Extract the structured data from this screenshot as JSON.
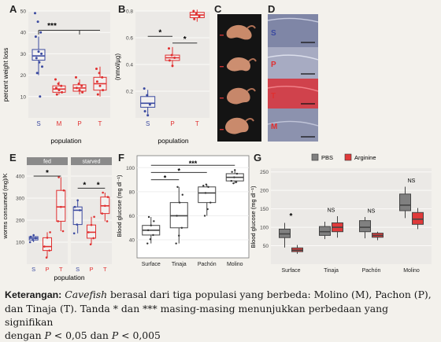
{
  "panels": {
    "A": {
      "label": "A",
      "ylabel": "percent weight loss",
      "xlabel": "population",
      "sig": "***"
    },
    "B": {
      "label": "B",
      "ylabel": "(nmol/µg)",
      "xlabel": "population",
      "sig1": "*",
      "sig2": "*"
    },
    "C": {
      "label": "C"
    },
    "D": {
      "label": "D",
      "rows": [
        "S",
        "P",
        "T",
        "M"
      ]
    },
    "E": {
      "label": "E",
      "ylabel": "worms consumed (mg)/K",
      "xlabel": "population",
      "facet_fed": "fed",
      "facet_starved": "starved",
      "sig_fed": "*",
      "sig_s1": "*",
      "sig_s2": "*"
    },
    "F": {
      "label": "F",
      "ylabel": "Blood glucose (mg dl⁻¹)",
      "sig1": "*",
      "sig2": "*",
      "sig3": "***"
    },
    "G": {
      "label": "G",
      "ylabel": "Blood glucose (mg dl⁻¹)",
      "sig_surface": "*",
      "sig_tinaja": "NS",
      "sig_pachon": "NS",
      "sig_molino": "NS"
    }
  },
  "chart_data": [
    {
      "type": "box",
      "panel": "A",
      "categories": [
        "S",
        "M",
        "P",
        "T"
      ],
      "ylim": [
        0,
        50
      ],
      "yticks": [
        10,
        20,
        30,
        40,
        50
      ],
      "ylabel": "percent weight loss",
      "xlabel": "population",
      "colors": [
        "#3b4aa0",
        "#e03030",
        "#e03030",
        "#e03030"
      ],
      "boxes": [
        {
          "min": 20,
          "q1": 27,
          "median": 29,
          "q3": 32,
          "max": 38
        },
        {
          "min": 11,
          "q1": 12,
          "median": 13.5,
          "q3": 15,
          "max": 17
        },
        {
          "min": 11,
          "q1": 12.5,
          "median": 14,
          "q3": 15.5,
          "max": 18
        },
        {
          "min": 10,
          "q1": 13,
          "median": 16,
          "q3": 19,
          "max": 24
        }
      ],
      "points": [
        [
          49,
          45,
          40,
          38,
          31,
          30,
          28,
          26,
          24,
          21,
          10
        ],
        [
          18,
          16,
          15,
          14,
          13,
          12,
          11
        ],
        [
          19,
          16,
          15,
          14,
          13,
          12
        ],
        [
          23,
          21,
          19,
          17,
          15,
          13,
          11
        ]
      ]
    },
    {
      "type": "box",
      "panel": "B",
      "categories": [
        "S",
        "P",
        "T"
      ],
      "ylim": [
        0,
        0.8
      ],
      "yticks": [
        0.2,
        0.4,
        0.6,
        0.8
      ],
      "ylabel": "(nmol/µg)",
      "xlabel": "population",
      "colors": [
        "#3b4aa0",
        "#e03030",
        "#e03030"
      ],
      "boxes": [
        {
          "min": 0.03,
          "q1": 0.08,
          "median": 0.11,
          "q3": 0.16,
          "max": 0.21
        },
        {
          "min": 0.38,
          "q1": 0.43,
          "median": 0.45,
          "q3": 0.47,
          "max": 0.53
        },
        {
          "min": 0.72,
          "q1": 0.75,
          "median": 0.77,
          "q3": 0.79,
          "max": 0.81
        }
      ],
      "points": [
        [
          0.22,
          0.17,
          0.1,
          0.05,
          0.02
        ],
        [
          0.52,
          0.47,
          0.45,
          0.43,
          0.39
        ],
        [
          0.8,
          0.78,
          0.76,
          0.74
        ]
      ]
    },
    {
      "type": "box",
      "panel": "E",
      "facets": [
        "fed",
        "starved"
      ],
      "categories": [
        "S",
        "P",
        "T"
      ],
      "ylim": [
        0,
        450
      ],
      "yticks": [
        100,
        200,
        300,
        400
      ],
      "ylabel": "worms consumed (mg)/K",
      "xlabel": "population",
      "colors": [
        "#3b4aa0",
        "#e03030",
        "#e03030"
      ],
      "boxes_fed": [
        {
          "min": 100,
          "q1": 110,
          "median": 118,
          "q3": 125,
          "max": 132
        },
        {
          "min": 30,
          "q1": 62,
          "median": 80,
          "q3": 120,
          "max": 145
        },
        {
          "min": 150,
          "q1": 195,
          "median": 260,
          "q3": 335,
          "max": 395
        }
      ],
      "boxes_starved": [
        {
          "min": 140,
          "q1": 180,
          "median": 245,
          "q3": 260,
          "max": 290
        },
        {
          "min": 90,
          "q1": 118,
          "median": 145,
          "q3": 178,
          "max": 215
        },
        {
          "min": 195,
          "q1": 230,
          "median": 265,
          "q3": 305,
          "max": 325
        }
      ]
    },
    {
      "type": "box",
      "panel": "F",
      "categories": [
        "Surface",
        "Tinaja",
        "Pachón",
        "Molino"
      ],
      "ylim": [
        25,
        110
      ],
      "yticks": [
        40,
        60,
        80,
        100
      ],
      "ylabel": "Blood glucose (mg dl⁻¹)",
      "boxes": [
        {
          "min": 37,
          "q1": 44,
          "median": 48,
          "q3": 52,
          "max": 59
        },
        {
          "min": 37,
          "q1": 50,
          "median": 60,
          "q3": 71,
          "max": 84
        },
        {
          "min": 60,
          "q1": 71,
          "median": 79,
          "q3": 84,
          "max": 86
        },
        {
          "min": 87,
          "q1": 89,
          "median": 92,
          "q3": 95,
          "max": 98
        }
      ]
    },
    {
      "type": "box",
      "panel": "G",
      "categories": [
        "Surface",
        "Tinaja",
        "Pachón",
        "Molino"
      ],
      "legend": [
        "PBS",
        "Arginine"
      ],
      "colors": [
        "#808080",
        "#e03a3a"
      ],
      "ylim": [
        0,
        260
      ],
      "yticks": [
        50,
        100,
        150,
        200,
        250
      ],
      "ylabel": "Blood glucose (mg dl⁻¹)",
      "pbs": [
        {
          "min": 45,
          "q1": 72,
          "median": 82,
          "q3": 95,
          "max": 112
        },
        {
          "min": 68,
          "q1": 78,
          "median": 88,
          "q3": 102,
          "max": 115
        },
        {
          "min": 70,
          "q1": 88,
          "median": 100,
          "q3": 118,
          "max": 128
        },
        {
          "min": 125,
          "q1": 145,
          "median": 160,
          "q3": 190,
          "max": 210
        }
      ],
      "arginine": [
        {
          "min": 28,
          "q1": 34,
          "median": 38,
          "q3": 44,
          "max": 52
        },
        {
          "min": 72,
          "q1": 88,
          "median": 100,
          "q3": 112,
          "max": 130
        },
        {
          "min": 65,
          "q1": 73,
          "median": 78,
          "q3": 84,
          "max": 88
        },
        {
          "min": 95,
          "q1": 108,
          "median": 122,
          "q3": 140,
          "max": 152
        }
      ]
    }
  ],
  "caption": {
    "bold": "Keterangan:",
    "italic": "Cavefish",
    "line1": " berasal dari tiga populasi yang berbeda: Molino (M), Pachon (P),",
    "line2": "dan Tinaja (T). Tanda * dan *** masing-masing menunjukkan perbedaan yang signifikan",
    "line3a": "dengan ",
    "p": "P",
    "line3b": " < 0,05 dan ",
    "line3c": " < 0,005"
  }
}
